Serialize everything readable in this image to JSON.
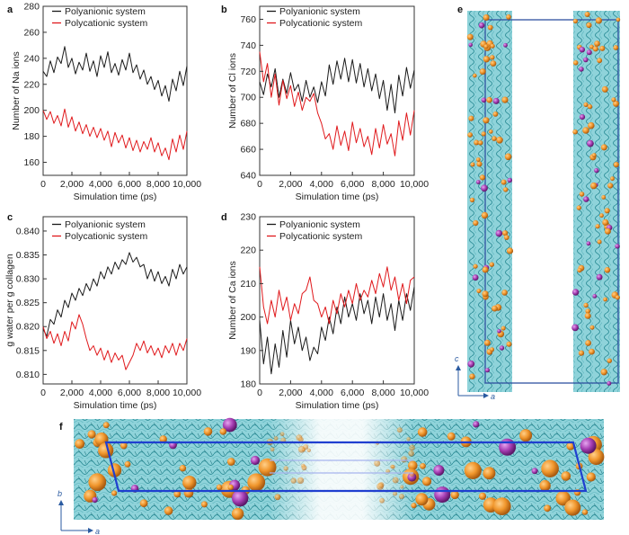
{
  "panels": {
    "e": {
      "letter": "e",
      "axes": {
        "vertical": "c",
        "horizontal": "a"
      }
    },
    "f": {
      "letter": "f",
      "axes": {
        "vertical": "b",
        "horizontal": "a"
      }
    }
  },
  "colors": {
    "polyanionic": "#1a1a1a",
    "polycationic": "#e0191c",
    "cell_box": "#3050a0",
    "water": "#6fc6cf",
    "sphere_orange": "#f0962c",
    "sphere_purple": "#a73fb4"
  },
  "chart_data": [
    {
      "id": "a",
      "letter": "a",
      "type": "line",
      "xlabel": "Simulation time (ps)",
      "ylabel": "Number of Na ions",
      "xlim": [
        0,
        10000
      ],
      "ylim": [
        150,
        280
      ],
      "xticks": [
        0,
        2000,
        4000,
        6000,
        8000,
        10000
      ],
      "xtick_labels": [
        "0",
        "2,000",
        "4,000",
        "6,000",
        "8,000",
        "10,000"
      ],
      "yticks": [
        160,
        180,
        200,
        220,
        240,
        260,
        280
      ],
      "ytick_labels": [
        "160",
        "180",
        "200",
        "220",
        "240",
        "260",
        "280"
      ],
      "legend_position": "top-left",
      "series": [
        {
          "name": "Polyanionic system",
          "color": "#1a1a1a",
          "x": [
            0,
            250,
            500,
            750,
            1000,
            1250,
            1500,
            1750,
            2000,
            2250,
            2500,
            2750,
            3000,
            3250,
            3500,
            3750,
            4000,
            4250,
            4500,
            4750,
            5000,
            5250,
            5500,
            5750,
            6000,
            6250,
            6500,
            6750,
            7000,
            7250,
            7500,
            7750,
            8000,
            8250,
            8500,
            8750,
            9000,
            9250,
            9500,
            9750,
            10000
          ],
          "y": [
            230,
            226,
            238,
            229,
            241,
            236,
            249,
            233,
            240,
            228,
            237,
            231,
            244,
            230,
            238,
            226,
            242,
            233,
            245,
            229,
            236,
            227,
            239,
            231,
            244,
            229,
            235,
            224,
            231,
            220,
            226,
            216,
            223,
            211,
            219,
            207,
            224,
            215,
            230,
            219,
            234
          ]
        },
        {
          "name": "Polycationic system",
          "color": "#e0191c",
          "x": [
            0,
            250,
            500,
            750,
            1000,
            1250,
            1500,
            1750,
            2000,
            2250,
            2500,
            2750,
            3000,
            3250,
            3500,
            3750,
            4000,
            4250,
            4500,
            4750,
            5000,
            5250,
            5500,
            5750,
            6000,
            6250,
            6500,
            6750,
            7000,
            7250,
            7500,
            7750,
            8000,
            8250,
            8500,
            8750,
            9000,
            9250,
            9500,
            9750,
            10000
          ],
          "y": [
            200,
            193,
            199,
            190,
            196,
            188,
            201,
            187,
            195,
            184,
            191,
            182,
            189,
            180,
            187,
            179,
            186,
            177,
            184,
            172,
            183,
            175,
            181,
            171,
            179,
            169,
            177,
            168,
            176,
            170,
            179,
            168,
            175,
            165,
            171,
            162,
            178,
            168,
            181,
            170,
            184
          ]
        }
      ]
    },
    {
      "id": "b",
      "letter": "b",
      "type": "line",
      "xlabel": "Simulation time (ps)",
      "ylabel": "Number of Cl ions",
      "xlim": [
        0,
        10000
      ],
      "ylim": [
        640,
        770
      ],
      "xticks": [
        0,
        2000,
        4000,
        6000,
        8000,
        10000
      ],
      "xtick_labels": [
        "0",
        "2,000",
        "4,000",
        "6,000",
        "8,000",
        "10,000"
      ],
      "yticks": [
        640,
        660,
        680,
        700,
        720,
        740,
        760
      ],
      "ytick_labels": [
        "640",
        "660",
        "680",
        "700",
        "720",
        "740",
        "760"
      ],
      "legend_position": "top-left",
      "series": [
        {
          "name": "Polyanionic system",
          "color": "#1a1a1a",
          "x": [
            0,
            250,
            500,
            750,
            1000,
            1250,
            1500,
            1750,
            2000,
            2250,
            2500,
            2750,
            3000,
            3250,
            3500,
            3750,
            4000,
            4250,
            4500,
            4750,
            5000,
            5250,
            5500,
            5750,
            6000,
            6250,
            6500,
            6750,
            7000,
            7250,
            7500,
            7750,
            8000,
            8250,
            8500,
            8750,
            9000,
            9250,
            9500,
            9750,
            10000
          ],
          "y": [
            712,
            702,
            718,
            708,
            722,
            700,
            714,
            703,
            719,
            705,
            710,
            697,
            713,
            700,
            708,
            696,
            712,
            701,
            725,
            710,
            728,
            714,
            730,
            712,
            729,
            711,
            726,
            708,
            722,
            705,
            718,
            699,
            713,
            690,
            710,
            688,
            717,
            701,
            723,
            707,
            721
          ]
        },
        {
          "name": "Polycationic system",
          "color": "#e0191c",
          "x": [
            0,
            250,
            500,
            750,
            1000,
            1250,
            1500,
            1750,
            2000,
            2250,
            2500,
            2750,
            3000,
            3250,
            3500,
            3750,
            4000,
            4250,
            4500,
            4750,
            5000,
            5250,
            5500,
            5750,
            6000,
            6250,
            6500,
            6750,
            7000,
            7250,
            7500,
            7750,
            8000,
            8250,
            8500,
            8750,
            9000,
            9250,
            9500,
            9750,
            10000
          ],
          "y": [
            735,
            712,
            726,
            700,
            718,
            694,
            713,
            699,
            709,
            693,
            704,
            690,
            700,
            697,
            703,
            688,
            680,
            668,
            672,
            660,
            678,
            663,
            674,
            659,
            681,
            665,
            676,
            662,
            670,
            656,
            676,
            661,
            679,
            664,
            672,
            655,
            682,
            667,
            688,
            671,
            690
          ]
        }
      ]
    },
    {
      "id": "c",
      "letter": "c",
      "type": "line",
      "xlabel": "Simulation time (ps)",
      "ylabel": "g water per g collagen",
      "xlim": [
        0,
        10000
      ],
      "ylim": [
        0.808,
        0.843
      ],
      "xticks": [
        0,
        2000,
        4000,
        6000,
        8000,
        10000
      ],
      "xtick_labels": [
        "0",
        "2,000",
        "4,000",
        "6,000",
        "8,000",
        "10,000"
      ],
      "yticks": [
        0.81,
        0.815,
        0.82,
        0.825,
        0.83,
        0.835,
        0.84
      ],
      "ytick_labels": [
        "0.810",
        "0.815",
        "0.820",
        "0.825",
        "0.830",
        "0.835",
        "0.840"
      ],
      "legend_position": "top-left",
      "series": [
        {
          "name": "Polyanionic system",
          "color": "#1a1a1a",
          "x": [
            0,
            250,
            500,
            750,
            1000,
            1250,
            1500,
            1750,
            2000,
            2250,
            2500,
            2750,
            3000,
            3250,
            3500,
            3750,
            4000,
            4250,
            4500,
            4750,
            5000,
            5250,
            5500,
            5750,
            6000,
            6250,
            6500,
            6750,
            7000,
            7250,
            7500,
            7750,
            8000,
            8250,
            8500,
            8750,
            9000,
            9250,
            9500,
            9750,
            10000
          ],
          "y": [
            0.8195,
            0.818,
            0.8215,
            0.8205,
            0.8235,
            0.822,
            0.8255,
            0.824,
            0.827,
            0.8255,
            0.828,
            0.8265,
            0.829,
            0.8275,
            0.83,
            0.8285,
            0.8315,
            0.83,
            0.8325,
            0.831,
            0.8335,
            0.832,
            0.834,
            0.833,
            0.8355,
            0.8335,
            0.8345,
            0.8325,
            0.833,
            0.83,
            0.832,
            0.8295,
            0.8315,
            0.829,
            0.8305,
            0.8285,
            0.832,
            0.83,
            0.833,
            0.831,
            0.8325
          ]
        },
        {
          "name": "Polycationic system",
          "color": "#e0191c",
          "x": [
            0,
            250,
            500,
            750,
            1000,
            1250,
            1500,
            1750,
            2000,
            2250,
            2500,
            2750,
            3000,
            3250,
            3500,
            3750,
            4000,
            4250,
            4500,
            4750,
            5000,
            5250,
            5500,
            5750,
            6000,
            6250,
            6500,
            6750,
            7000,
            7250,
            7500,
            7750,
            8000,
            8250,
            8500,
            8750,
            9000,
            9250,
            9500,
            9750,
            10000
          ],
          "y": [
            0.82,
            0.8175,
            0.819,
            0.8165,
            0.8185,
            0.816,
            0.819,
            0.817,
            0.821,
            0.8195,
            0.8225,
            0.8205,
            0.8175,
            0.815,
            0.816,
            0.814,
            0.8155,
            0.813,
            0.815,
            0.8125,
            0.8145,
            0.813,
            0.814,
            0.811,
            0.8125,
            0.814,
            0.8165,
            0.815,
            0.817,
            0.8145,
            0.816,
            0.814,
            0.8155,
            0.8135,
            0.816,
            0.8145,
            0.8165,
            0.814,
            0.8165,
            0.815,
            0.8175
          ]
        }
      ]
    },
    {
      "id": "d",
      "letter": "d",
      "type": "line",
      "xlabel": "Simulation time (ps)",
      "ylabel": "Number of Ca ions",
      "xlim": [
        0,
        10000
      ],
      "ylim": [
        180,
        230
      ],
      "xticks": [
        0,
        2000,
        4000,
        6000,
        8000,
        10000
      ],
      "xtick_labels": [
        "0",
        "2,000",
        "4,000",
        "6,000",
        "8,000",
        "10,000"
      ],
      "yticks": [
        180,
        190,
        200,
        210,
        220,
        230
      ],
      "ytick_labels": [
        "180",
        "190",
        "200",
        "210",
        "220",
        "230"
      ],
      "legend_position": "top-left",
      "series": [
        {
          "name": "Polyanionic system",
          "color": "#1a1a1a",
          "x": [
            0,
            250,
            500,
            750,
            1000,
            1250,
            1500,
            1750,
            2000,
            2250,
            2500,
            2750,
            3000,
            3250,
            3500,
            3750,
            4000,
            4250,
            4500,
            4750,
            5000,
            5250,
            5500,
            5750,
            6000,
            6250,
            6500,
            6750,
            7000,
            7250,
            7500,
            7750,
            8000,
            8250,
            8500,
            8750,
            9000,
            9250,
            9500,
            9750,
            10000
          ],
          "y": [
            199,
            186,
            194,
            183,
            192,
            185,
            196,
            188,
            199,
            192,
            197,
            190,
            194,
            187,
            191,
            189,
            197,
            193,
            200,
            195,
            203,
            198,
            206,
            200,
            204,
            199,
            207,
            201,
            205,
            198,
            206,
            200,
            207,
            199,
            204,
            196,
            205,
            199,
            207,
            202,
            209
          ]
        },
        {
          "name": "Polycationic system",
          "color": "#e0191c",
          "x": [
            0,
            250,
            500,
            750,
            1000,
            1250,
            1500,
            1750,
            2000,
            2250,
            2500,
            2750,
            3000,
            3250,
            3500,
            3750,
            4000,
            4250,
            4500,
            4750,
            5000,
            5250,
            5500,
            5750,
            6000,
            6250,
            6500,
            6750,
            7000,
            7250,
            7500,
            7750,
            8000,
            8250,
            8500,
            8750,
            9000,
            9250,
            9500,
            9750,
            10000
          ],
          "y": [
            215,
            203,
            198,
            205,
            200,
            208,
            202,
            206,
            199,
            204,
            201,
            207,
            208,
            212,
            205,
            204,
            200,
            203,
            198,
            205,
            201,
            207,
            203,
            208,
            204,
            210,
            205,
            208,
            206,
            211,
            207,
            213,
            209,
            215,
            208,
            212,
            205,
            210,
            204,
            211,
            212
          ]
        }
      ]
    }
  ]
}
